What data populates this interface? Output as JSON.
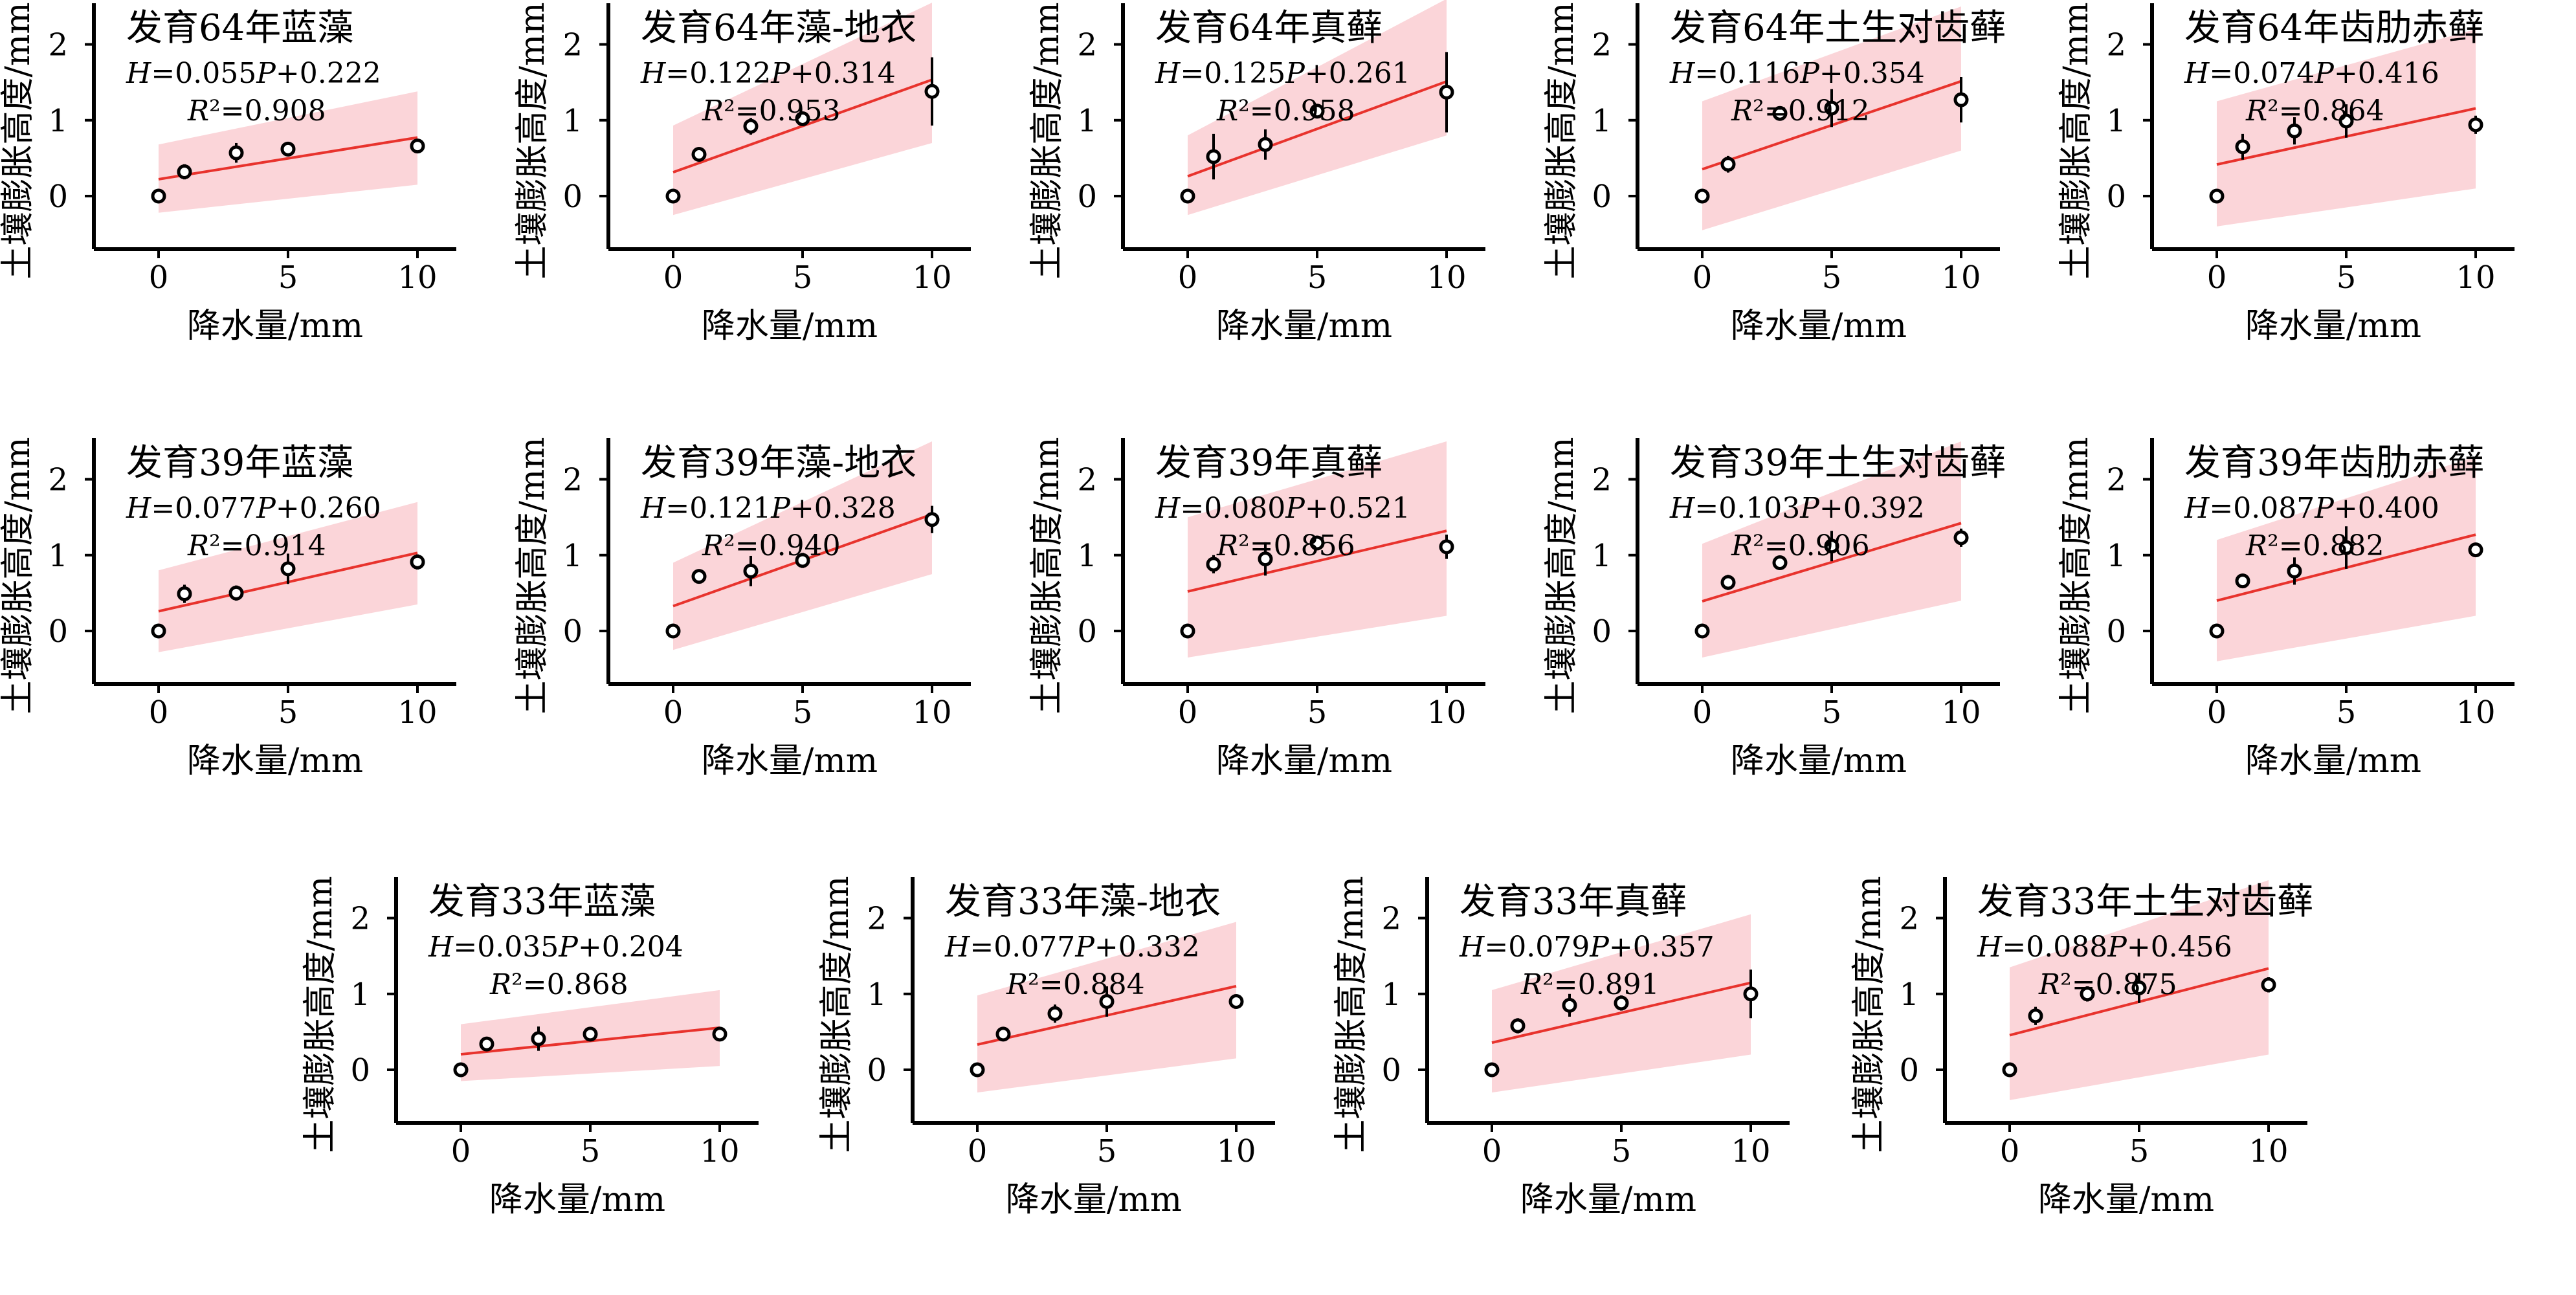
{
  "chart_data": [
    {
      "type": "scatter",
      "title": "发育64年蓝藻",
      "equation": "H=0.055P+0.222",
      "r2": "R²=0.908",
      "xlabel": "降水量/mm",
      "ylabel": "土壤膨胀高度/mm",
      "x": [
        0,
        1,
        3,
        5,
        10
      ],
      "y": [
        0,
        0.32,
        0.57,
        0.62,
        0.66
      ],
      "yerr": [
        0,
        0.1,
        0.13,
        0.08,
        0.07
      ],
      "fit": {
        "slope": 0.055,
        "intercept": 0.222
      },
      "band": {
        "start": [
          -0.22,
          0.68
        ],
        "end": [
          0.15,
          1.38
        ]
      },
      "xlim": [
        -2.5,
        11.5
      ],
      "ylim": [
        -0.7,
        2.5
      ],
      "xticks": [
        0,
        5,
        10
      ],
      "yticks": [
        0,
        1,
        2
      ]
    },
    {
      "type": "scatter",
      "title": "发育64年藻-地衣",
      "equation": "H=0.122P+0.314",
      "r2": "R²=0.953",
      "xlabel": "降水量/mm",
      "ylabel": "土壤膨胀高度/mm",
      "x": [
        0,
        1,
        3,
        5,
        10
      ],
      "y": [
        0,
        0.55,
        0.92,
        1.02,
        1.38
      ],
      "yerr": [
        0,
        0.08,
        0.11,
        0.06,
        0.45
      ],
      "fit": {
        "slope": 0.122,
        "intercept": 0.314
      },
      "band": {
        "start": [
          -0.25,
          0.93
        ],
        "end": [
          0.7,
          2.55
        ]
      },
      "xlim": [
        -2.5,
        11.5
      ],
      "ylim": [
        -0.7,
        2.5
      ],
      "xticks": [
        0,
        5,
        10
      ],
      "yticks": [
        0,
        1,
        2
      ]
    },
    {
      "type": "scatter",
      "title": "发育64年真藓",
      "equation": "H=0.125P+0.261",
      "r2": "R²=0.958",
      "xlabel": "降水量/mm",
      "ylabel": "土壤膨胀高度/mm",
      "x": [
        0,
        1,
        3,
        5,
        10
      ],
      "y": [
        0,
        0.52,
        0.68,
        1.12,
        1.37
      ],
      "yerr": [
        0,
        0.3,
        0.2,
        0.05,
        0.53
      ],
      "fit": {
        "slope": 0.125,
        "intercept": 0.261
      },
      "band": {
        "start": [
          -0.25,
          0.8
        ],
        "end": [
          0.8,
          2.6
        ]
      },
      "xlim": [
        -2.5,
        11.5
      ],
      "ylim": [
        -0.7,
        2.5
      ],
      "xticks": [
        0,
        5,
        10
      ],
      "yticks": [
        0,
        1,
        2
      ]
    },
    {
      "type": "scatter",
      "title": "发育64年土生对齿藓",
      "equation": "H=0.116P+0.354",
      "r2": "R²=0.912",
      "xlabel": "降水量/mm",
      "ylabel": "土壤膨胀高度/mm",
      "x": [
        0,
        1,
        3,
        5,
        10
      ],
      "y": [
        0,
        0.42,
        1.09,
        1.16,
        1.27
      ],
      "yerr": [
        0,
        0.11,
        0.05,
        0.25,
        0.3
      ],
      "fit": {
        "slope": 0.116,
        "intercept": 0.354
      },
      "band": {
        "start": [
          -0.45,
          1.25
        ],
        "end": [
          0.6,
          2.5
        ]
      },
      "xlim": [
        -2.5,
        11.5
      ],
      "ylim": [
        -0.7,
        2.5
      ],
      "xticks": [
        0,
        5,
        10
      ],
      "yticks": [
        0,
        1,
        2
      ]
    },
    {
      "type": "scatter",
      "title": "发育64年齿肋赤藓",
      "equation": "H=0.074P+0.416",
      "r2": "R²=0.864",
      "xlabel": "降水量/mm",
      "ylabel": "土壤膨胀高度/mm",
      "x": [
        0,
        1,
        3,
        5,
        10
      ],
      "y": [
        0,
        0.65,
        0.86,
        0.99,
        0.94
      ],
      "yerr": [
        0,
        0.17,
        0.18,
        0.22,
        0.12
      ],
      "fit": {
        "slope": 0.074,
        "intercept": 0.416
      },
      "band": {
        "start": [
          -0.4,
          1.25
        ],
        "end": [
          0.1,
          2.2
        ]
      },
      "xlim": [
        -2.5,
        11.5
      ],
      "ylim": [
        -0.7,
        2.5
      ],
      "xticks": [
        0,
        5,
        10
      ],
      "yticks": [
        0,
        1,
        2
      ]
    },
    {
      "type": "scatter",
      "title": "发育39年蓝藻",
      "equation": "H=0.077P+0.260",
      "r2": "R²=0.914",
      "xlabel": "降水量/mm",
      "ylabel": "土壤膨胀高度/mm",
      "x": [
        0,
        1,
        3,
        5,
        10
      ],
      "y": [
        0,
        0.49,
        0.5,
        0.82,
        0.91
      ],
      "yerr": [
        0,
        0.12,
        0.1,
        0.2,
        0.1
      ],
      "fit": {
        "slope": 0.077,
        "intercept": 0.26
      },
      "band": {
        "start": [
          -0.28,
          0.8
        ],
        "end": [
          0.35,
          1.7
        ]
      },
      "xlim": [
        -2.5,
        11.5
      ],
      "ylim": [
        -0.7,
        2.5
      ],
      "xticks": [
        0,
        5,
        10
      ],
      "yticks": [
        0,
        1,
        2
      ]
    },
    {
      "type": "scatter",
      "title": "发育39年藻-地衣",
      "equation": "H=0.121P+0.328",
      "r2": "R²=0.940",
      "xlabel": "降水量/mm",
      "ylabel": "土壤膨胀高度/mm",
      "x": [
        0,
        1,
        3,
        5,
        10
      ],
      "y": [
        0,
        0.72,
        0.79,
        0.93,
        1.47
      ],
      "yerr": [
        0,
        0.05,
        0.2,
        0.1,
        0.18
      ],
      "fit": {
        "slope": 0.121,
        "intercept": 0.328
      },
      "band": {
        "start": [
          -0.25,
          0.9
        ],
        "end": [
          0.75,
          2.5
        ]
      },
      "xlim": [
        -2.5,
        11.5
      ],
      "ylim": [
        -0.7,
        2.5
      ],
      "xticks": [
        0,
        5,
        10
      ],
      "yticks": [
        0,
        1,
        2
      ]
    },
    {
      "type": "scatter",
      "title": "发育39年真藓",
      "equation": "H=0.080P+0.521",
      "r2": "R²=0.856",
      "xlabel": "降水量/mm",
      "ylabel": "土壤膨胀高度/mm",
      "x": [
        0,
        1,
        3,
        5,
        10
      ],
      "y": [
        0,
        0.88,
        0.95,
        1.16,
        1.11
      ],
      "yerr": [
        0,
        0.12,
        0.22,
        0.07,
        0.16
      ],
      "fit": {
        "slope": 0.08,
        "intercept": 0.521
      },
      "band": {
        "start": [
          -0.35,
          1.5
        ],
        "end": [
          0.2,
          2.5
        ]
      },
      "xlim": [
        -2.5,
        11.5
      ],
      "ylim": [
        -0.7,
        2.5
      ],
      "xticks": [
        0,
        5,
        10
      ],
      "yticks": [
        0,
        1,
        2
      ]
    },
    {
      "type": "scatter",
      "title": "发育39年土生对齿藓",
      "equation": "H=0.103P+0.392",
      "r2": "R²=0.906",
      "xlabel": "降水量/mm",
      "ylabel": "土壤膨胀高度/mm",
      "x": [
        0,
        1,
        3,
        5,
        10
      ],
      "y": [
        0,
        0.64,
        0.9,
        1.12,
        1.23
      ],
      "yerr": [
        0,
        0.1,
        0.05,
        0.2,
        0.12
      ],
      "fit": {
        "slope": 0.103,
        "intercept": 0.392
      },
      "band": {
        "start": [
          -0.35,
          1.15
        ],
        "end": [
          0.4,
          2.5
        ]
      },
      "xlim": [
        -2.5,
        11.5
      ],
      "ylim": [
        -0.7,
        2.5
      ],
      "xticks": [
        0,
        5,
        10
      ],
      "yticks": [
        0,
        1,
        2
      ]
    },
    {
      "type": "scatter",
      "title": "发育39年齿肋赤藓",
      "equation": "H=0.087P+0.400",
      "r2": "R²=0.882",
      "xlabel": "降水量/mm",
      "ylabel": "土壤膨胀高度/mm",
      "x": [
        0,
        1,
        3,
        5,
        10
      ],
      "y": [
        0,
        0.66,
        0.79,
        1.1,
        1.07
      ],
      "yerr": [
        0,
        0.05,
        0.18,
        0.28,
        0.08
      ],
      "fit": {
        "slope": 0.087,
        "intercept": 0.4
      },
      "band": {
        "start": [
          -0.4,
          1.2
        ],
        "end": [
          0.2,
          2.3
        ]
      },
      "xlim": [
        -2.5,
        11.5
      ],
      "ylim": [
        -0.7,
        2.5
      ],
      "xticks": [
        0,
        5,
        10
      ],
      "yticks": [
        0,
        1,
        2
      ]
    },
    {
      "type": "scatter",
      "title": "发育33年蓝藻",
      "equation": "H=0.035P+0.204",
      "r2": "R²=0.868",
      "xlabel": "降水量/mm",
      "ylabel": "土壤膨胀高度/mm",
      "x": [
        0,
        1,
        3,
        5,
        10
      ],
      "y": [
        0,
        0.34,
        0.41,
        0.47,
        0.47
      ],
      "yerr": [
        0,
        0.05,
        0.16,
        0.08,
        0.05
      ],
      "fit": {
        "slope": 0.035,
        "intercept": 0.204
      },
      "band": {
        "start": [
          -0.15,
          0.6
        ],
        "end": [
          0.05,
          1.05
        ]
      },
      "xlim": [
        -2.5,
        11.5
      ],
      "ylim": [
        -0.7,
        2.5
      ],
      "xticks": [
        0,
        5,
        10
      ],
      "yticks": [
        0,
        1,
        2
      ]
    },
    {
      "type": "scatter",
      "title": "发育33年藻-地衣",
      "equation": "H=0.077P+0.332",
      "r2": "R²=0.884",
      "xlabel": "降水量/mm",
      "ylabel": "土壤膨胀高度/mm",
      "x": [
        0,
        1,
        3,
        5,
        10
      ],
      "y": [
        0,
        0.47,
        0.74,
        0.9,
        0.9
      ],
      "yerr": [
        0,
        0.08,
        0.12,
        0.2,
        0.05
      ],
      "fit": {
        "slope": 0.077,
        "intercept": 0.332
      },
      "band": {
        "start": [
          -0.3,
          0.98
        ],
        "end": [
          0.15,
          1.95
        ]
      },
      "xlim": [
        -2.5,
        11.5
      ],
      "ylim": [
        -0.7,
        2.5
      ],
      "xticks": [
        0,
        5,
        10
      ],
      "yticks": [
        0,
        1,
        2
      ]
    },
    {
      "type": "scatter",
      "title": "发育33年真藓",
      "equation": "H=0.079P+0.357",
      "r2": "R²=0.891",
      "xlabel": "降水量/mm",
      "ylabel": "土壤膨胀高度/mm",
      "x": [
        0,
        1,
        3,
        5,
        10
      ],
      "y": [
        0,
        0.58,
        0.85,
        0.88,
        1.0
      ],
      "yerr": [
        0,
        0.1,
        0.15,
        0.1,
        0.32
      ],
      "fit": {
        "slope": 0.079,
        "intercept": 0.357
      },
      "band": {
        "start": [
          -0.3,
          1.05
        ],
        "end": [
          0.2,
          2.05
        ]
      },
      "xlim": [
        -2.5,
        11.5
      ],
      "ylim": [
        -0.7,
        2.5
      ],
      "xticks": [
        0,
        5,
        10
      ],
      "yticks": [
        0,
        1,
        2
      ]
    },
    {
      "type": "scatter",
      "title": "发育33年土生对齿藓",
      "equation": "H=0.088P+0.456",
      "r2": "R²=0.875",
      "xlabel": "降水量/mm",
      "ylabel": "土壤膨胀高度/mm",
      "x": [
        0,
        1,
        3,
        5,
        10
      ],
      "y": [
        0,
        0.71,
        1.0,
        1.08,
        1.12
      ],
      "yerr": [
        0,
        0.12,
        0.1,
        0.2,
        0.1
      ],
      "fit": {
        "slope": 0.088,
        "intercept": 0.456
      },
      "band": {
        "start": [
          -0.4,
          1.35
        ],
        "end": [
          0.2,
          2.5
        ]
      },
      "xlim": [
        -2.5,
        11.5
      ],
      "ylim": [
        -0.7,
        2.5
      ],
      "xticks": [
        0,
        5,
        10
      ],
      "yticks": [
        0,
        1,
        2
      ]
    }
  ],
  "colors": {
    "fit_line": "#e8332d",
    "band": "#fbd5d9",
    "marker": "#000000"
  }
}
